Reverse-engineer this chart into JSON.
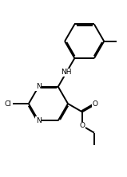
{
  "bg": "#ffffff",
  "bond_color": "black",
  "lw": 1.4,
  "font_size": 6.5,
  "fig_w": 1.59,
  "fig_h": 2.22,
  "dpi": 100,
  "xlim": [
    0,
    10
  ],
  "ylim": [
    0,
    14
  ],
  "BL": 1.55
}
